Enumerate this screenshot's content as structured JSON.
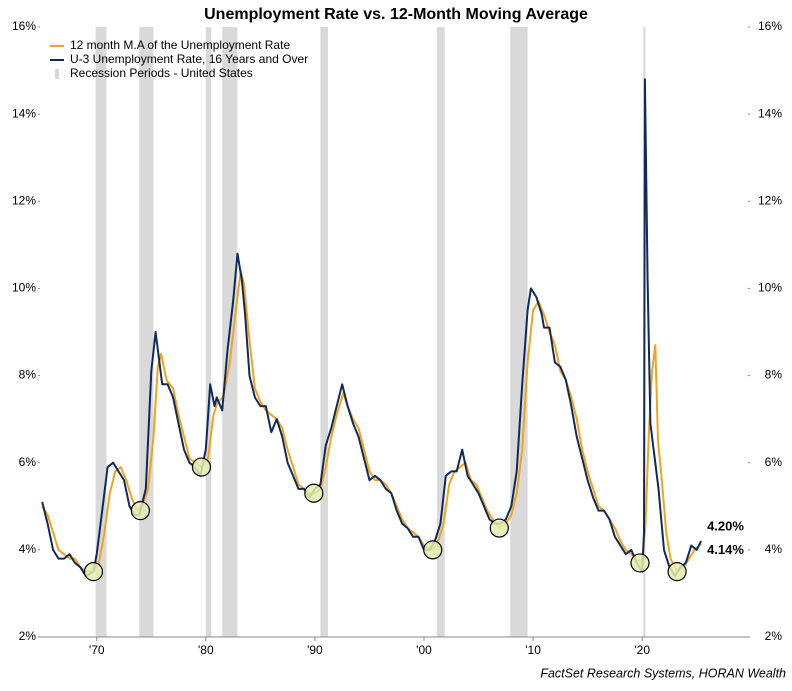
{
  "chart_data": {
    "type": "line",
    "title": "Unemployment Rate vs. 12-Month Moving Average",
    "source": "FactSet Research Systems, HORAN Wealth",
    "xlim": [
      1964.8,
      2029.7
    ],
    "xticks": [
      {
        "value": 1970,
        "label": "'70"
      },
      {
        "value": 1980,
        "label": "'80"
      },
      {
        "value": 1990,
        "label": "'90"
      },
      {
        "value": 2000,
        "label": "'00"
      },
      {
        "value": 2010,
        "label": "'10"
      },
      {
        "value": 2020,
        "label": "'20"
      }
    ],
    "ylim": [
      2,
      16
    ],
    "yticks": [
      {
        "value": 2,
        "label": "2%"
      },
      {
        "value": 4,
        "label": "4%"
      },
      {
        "value": 6,
        "label": "6%"
      },
      {
        "value": 8,
        "label": "8%"
      },
      {
        "value": 10,
        "label": "10%"
      },
      {
        "value": 12,
        "label": "12%"
      },
      {
        "value": 14,
        "label": "14%"
      },
      {
        "value": 16,
        "label": "16%"
      }
    ],
    "y2lim": [
      2,
      16
    ],
    "y2ticks": [
      {
        "value": 2,
        "label": "2%"
      },
      {
        "value": 4,
        "label": "4%"
      },
      {
        "value": 6,
        "label": "6%"
      },
      {
        "value": 8,
        "label": "8%"
      },
      {
        "value": 10,
        "label": "10%"
      },
      {
        "value": 12,
        "label": "12%"
      },
      {
        "value": 14,
        "label": "14%"
      },
      {
        "value": 16,
        "label": "16%"
      }
    ],
    "recessions": {
      "name": "Recession Periods - United States",
      "color": "#d9d9d9",
      "periods": [
        [
          1969.9,
          1970.9
        ],
        [
          1973.9,
          1975.2
        ],
        [
          1980.0,
          1980.5
        ],
        [
          1981.5,
          1982.9
        ],
        [
          1990.5,
          1991.2
        ],
        [
          2001.2,
          2001.9
        ],
        [
          2007.9,
          2009.5
        ],
        [
          2020.1,
          2020.3
        ]
      ]
    },
    "highlights": {
      "color": "#e4ecae",
      "x": [
        1969.7,
        1974.0,
        1979.6,
        1989.9,
        2000.8,
        2006.9,
        2019.8,
        2023.2
      ],
      "y": [
        3.5,
        4.9,
        5.9,
        5.3,
        4.0,
        4.5,
        3.7,
        3.5
      ]
    },
    "series": [
      {
        "name": "12 month M.A of the Unemployment Rate",
        "color": "#f5a21b",
        "end_label": {
          "value": 4.14,
          "label": "4.14%"
        },
        "x": [
          1965.0,
          1965.5,
          1966.0,
          1966.5,
          1967.0,
          1967.5,
          1968.0,
          1968.5,
          1969.0,
          1969.7,
          1970.2,
          1970.7,
          1971.2,
          1971.7,
          1972.2,
          1972.7,
          1973.2,
          1973.7,
          1974.2,
          1974.7,
          1975.2,
          1975.6,
          1975.9,
          1976.4,
          1977.0,
          1977.5,
          1978.0,
          1978.5,
          1979.0,
          1979.6,
          1980.2,
          1980.7,
          1981.1,
          1981.6,
          1982.2,
          1982.7,
          1983.2,
          1983.5,
          1984.0,
          1984.5,
          1985.0,
          1985.5,
          1986.0,
          1986.5,
          1987.0,
          1987.5,
          1988.0,
          1988.5,
          1989.0,
          1989.5,
          1990.0,
          1990.5,
          1991.0,
          1991.5,
          1992.0,
          1992.6,
          1993.0,
          1993.5,
          1994.0,
          1994.5,
          1995.0,
          1995.5,
          1996.0,
          1996.5,
          1997.0,
          1997.5,
          1998.0,
          1998.5,
          1999.0,
          1999.5,
          2000.0,
          2000.8,
          2001.3,
          2001.8,
          2002.3,
          2002.8,
          2003.3,
          2003.8,
          2004.3,
          2004.8,
          2005.3,
          2005.8,
          2006.3,
          2006.9,
          2007.5,
          2008.0,
          2008.5,
          2009.0,
          2009.5,
          2010.0,
          2010.5,
          2011.0,
          2011.5,
          2012.0,
          2012.5,
          2013.0,
          2013.5,
          2014.0,
          2014.5,
          2015.0,
          2015.5,
          2016.0,
          2016.5,
          2017.0,
          2017.5,
          2018.0,
          2018.5,
          2019.0,
          2019.5,
          2020.0,
          2020.3,
          2020.6,
          2020.9,
          2021.2,
          2021.45,
          2021.8,
          2022.2,
          2022.6,
          2023.2,
          2023.8,
          2024.3,
          2024.8,
          2025.4
        ],
        "values": [
          5.0,
          4.8,
          4.4,
          4.0,
          3.9,
          3.8,
          3.8,
          3.6,
          3.5,
          3.5,
          3.7,
          4.4,
          5.3,
          5.8,
          5.9,
          5.6,
          5.2,
          4.9,
          5.0,
          5.4,
          6.6,
          8.2,
          8.5,
          7.9,
          7.7,
          7.1,
          6.6,
          6.1,
          6.0,
          5.9,
          6.1,
          7.1,
          7.4,
          7.5,
          8.3,
          9.4,
          10.4,
          10.1,
          8.8,
          7.7,
          7.4,
          7.2,
          7.1,
          7.0,
          6.8,
          6.3,
          5.9,
          5.5,
          5.4,
          5.3,
          5.3,
          5.4,
          5.9,
          6.6,
          7.1,
          7.6,
          7.3,
          7.0,
          6.8,
          6.3,
          5.8,
          5.6,
          5.6,
          5.5,
          5.3,
          5.0,
          4.7,
          4.5,
          4.4,
          4.3,
          4.1,
          4.0,
          4.2,
          4.6,
          5.5,
          5.8,
          5.9,
          6.0,
          5.6,
          5.5,
          5.2,
          4.9,
          4.7,
          4.5,
          4.6,
          4.8,
          5.3,
          6.3,
          8.3,
          9.5,
          9.7,
          9.4,
          9.0,
          8.7,
          8.1,
          7.9,
          7.5,
          7.0,
          6.3,
          5.8,
          5.4,
          5.0,
          4.9,
          4.7,
          4.5,
          4.2,
          4.0,
          3.9,
          3.8,
          3.7,
          4.6,
          6.6,
          8.1,
          8.7,
          6.5,
          5.6,
          4.4,
          3.8,
          3.5,
          3.6,
          3.8,
          4.0,
          4.14
        ]
      },
      {
        "name": "U-3 Unemployment Rate, 16 Years and Over",
        "color": "#0d2b5e",
        "end_label": {
          "value": 4.2,
          "label": "4.20%"
        },
        "x": [
          1965.0,
          1965.5,
          1966.0,
          1966.5,
          1967.0,
          1967.5,
          1968.0,
          1968.5,
          1969.0,
          1969.7,
          1970.0,
          1970.5,
          1971.0,
          1971.5,
          1972.0,
          1972.5,
          1973.0,
          1973.5,
          1973.9,
          1974.5,
          1975.0,
          1975.4,
          1975.7,
          1976.0,
          1976.5,
          1977.0,
          1977.5,
          1978.0,
          1978.5,
          1979.0,
          1979.5,
          1980.0,
          1980.4,
          1980.8,
          1981.0,
          1981.5,
          1982.0,
          1982.5,
          1982.9,
          1983.3,
          1983.6,
          1984.0,
          1984.5,
          1985.0,
          1985.5,
          1986.0,
          1986.5,
          1987.0,
          1987.5,
          1988.0,
          1988.5,
          1989.0,
          1989.5,
          1990.0,
          1990.5,
          1991.0,
          1991.5,
          1992.0,
          1992.5,
          1993.0,
          1993.5,
          1994.0,
          1994.5,
          1995.0,
          1995.5,
          1996.0,
          1996.5,
          1997.0,
          1997.5,
          1998.0,
          1998.5,
          1999.0,
          1999.5,
          2000.0,
          2000.5,
          2001.0,
          2001.5,
          2002.0,
          2002.5,
          2003.0,
          2003.5,
          2004.0,
          2004.5,
          2005.0,
          2005.5,
          2006.0,
          2006.5,
          2007.0,
          2007.5,
          2008.0,
          2008.5,
          2009.0,
          2009.5,
          2009.8,
          2010.3,
          2010.8,
          2011.0,
          2011.5,
          2012.0,
          2012.5,
          2013.0,
          2013.5,
          2014.0,
          2014.5,
          2015.0,
          2015.5,
          2016.0,
          2016.5,
          2017.0,
          2017.5,
          2018.0,
          2018.5,
          2019.0,
          2019.5,
          2020.0,
          2020.17,
          2020.25,
          2020.5,
          2020.75,
          2021.0,
          2021.5,
          2022.0,
          2022.5,
          2023.0,
          2023.5,
          2024.0,
          2024.5,
          2025.0,
          2025.4
        ],
        "values": [
          5.1,
          4.6,
          4.0,
          3.8,
          3.8,
          3.9,
          3.7,
          3.6,
          3.4,
          3.5,
          3.9,
          4.9,
          5.9,
          6.0,
          5.8,
          5.6,
          5.0,
          4.8,
          4.8,
          5.4,
          8.1,
          9.0,
          8.4,
          7.8,
          7.8,
          7.5,
          6.9,
          6.3,
          6.0,
          5.9,
          5.7,
          6.3,
          7.8,
          7.3,
          7.5,
          7.2,
          8.6,
          9.7,
          10.8,
          10.2,
          9.4,
          8.0,
          7.5,
          7.3,
          7.3,
          6.7,
          7.0,
          6.6,
          6.0,
          5.7,
          5.4,
          5.4,
          5.2,
          5.4,
          5.5,
          6.4,
          6.8,
          7.3,
          7.8,
          7.3,
          6.9,
          6.6,
          6.1,
          5.6,
          5.7,
          5.6,
          5.4,
          5.3,
          4.9,
          4.6,
          4.5,
          4.3,
          4.3,
          4.0,
          4.0,
          4.2,
          4.6,
          5.7,
          5.8,
          5.8,
          6.3,
          5.7,
          5.5,
          5.3,
          5.0,
          4.7,
          4.6,
          4.6,
          4.7,
          5.0,
          5.8,
          7.8,
          9.5,
          10.0,
          9.8,
          9.4,
          9.1,
          9.1,
          8.3,
          8.2,
          7.9,
          7.3,
          6.6,
          6.1,
          5.6,
          5.2,
          4.9,
          4.9,
          4.7,
          4.3,
          4.1,
          3.9,
          4.0,
          3.7,
          3.5,
          4.4,
          14.8,
          10.2,
          6.9,
          6.4,
          5.4,
          4.0,
          3.6,
          3.4,
          3.6,
          3.7,
          4.1,
          4.0,
          4.2
        ]
      }
    ]
  }
}
